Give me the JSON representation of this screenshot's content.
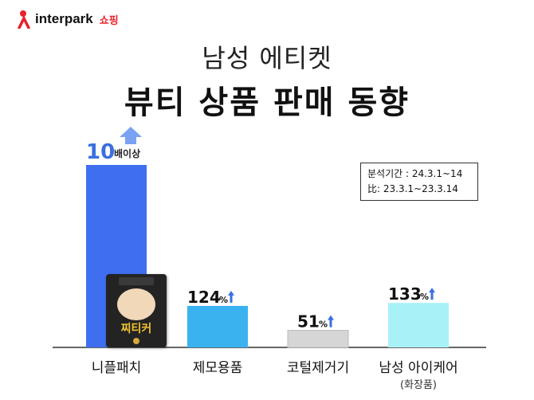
{
  "brand": {
    "name": "interpark",
    "sub": "쇼핑",
    "accent": "#e8212a"
  },
  "title_line1": "남성 에티켓",
  "title_line2": "뷰티 상품 판매 동향",
  "period": {
    "line1": "분석기간 : 24.3.1~14",
    "line2": "比: 23.3.1~23.3.14"
  },
  "product_label": "찌티커",
  "chart_data": {
    "type": "bar",
    "categories": [
      "니플패치",
      "제모용품",
      "코털제거기",
      "남성 아이케어"
    ],
    "category_sublabels": [
      "",
      "",
      "",
      "(화장품)"
    ],
    "values": [
      1000,
      124,
      51,
      133
    ],
    "value_labels": [
      {
        "number": "10",
        "unit": "배이상"
      },
      {
        "number": "124",
        "unit": "%"
      },
      {
        "number": "51",
        "unit": "%"
      },
      {
        "number": "133",
        "unit": "%"
      }
    ],
    "colors": [
      "#3f6ff0",
      "#3ab2f0",
      "#d6d6d6",
      "#a8f2f7"
    ],
    "arrow_color": "#3b6fe0",
    "ylim": [
      0,
      1000
    ],
    "grid": false,
    "legend": "none",
    "xlabel": "",
    "ylabel": "",
    "title": "뷰티 상품 판매 동향"
  }
}
